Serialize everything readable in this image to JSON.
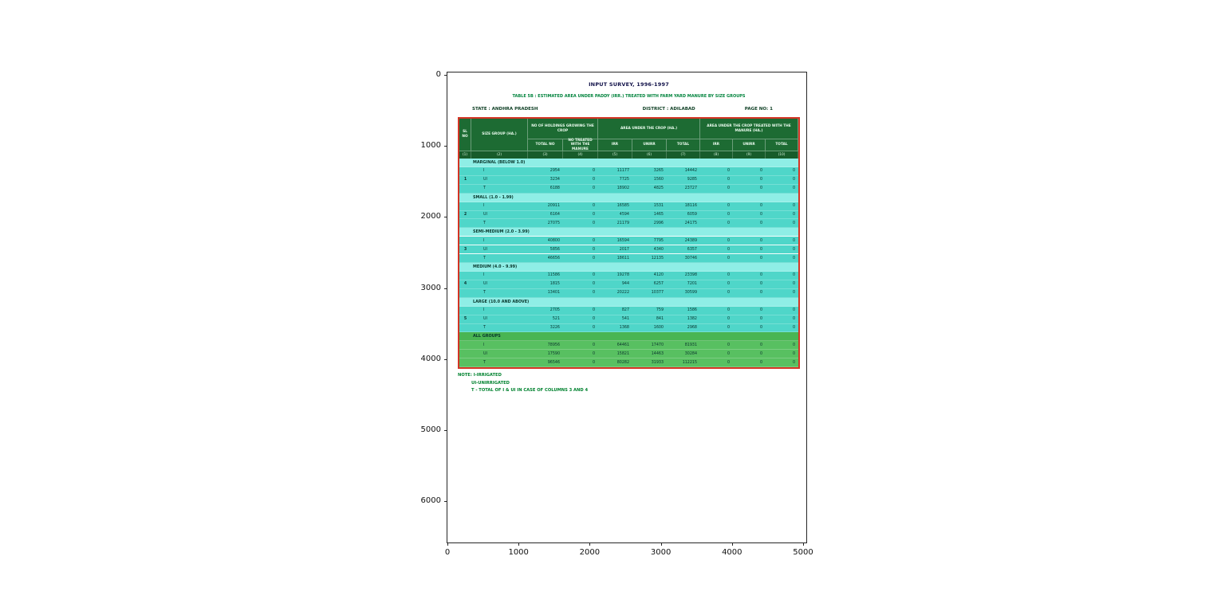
{
  "figure": {
    "x_ticks": [
      "0",
      "1000",
      "2000",
      "3000",
      "4000",
      "5000"
    ],
    "y_ticks": [
      "0",
      "1000",
      "2000",
      "3000",
      "4000",
      "5000",
      "6000"
    ]
  },
  "document": {
    "title": "INPUT SURVEY, 1996-1997",
    "subtitle": "TABLE 5B : ESTIMATED AREA UNDER PADDY (IRR.) TREATED WITH FARM YARD MANURE BY SIZE GROUPS",
    "state": "STATE : ANDHRA PRADESH",
    "district": "DISTRICT : ADILABAD",
    "page": "PAGE NO: 1",
    "notes": [
      "NOTE: I-IRRIGATED",
      "UI-UNIRRIGATED",
      "T - TOTAL OF I & UI IN CASE OF COLUMNS 3 AND 4"
    ],
    "colors": {
      "header_green": "#1d6b33",
      "row_teal": "#4fd6c9",
      "row_teal_light": "#8feee6",
      "all_groups_green": "#58c061",
      "border_red": "#d43425",
      "note_green": "#00822f"
    }
  },
  "table": {
    "header": {
      "sl": "SL NO",
      "size_group": "SIZE GROUP (HA.)",
      "holdings_group": "NO OF HOLDINGS GROWING THE CROP",
      "holdings_sub": [
        "TOTAL NO",
        "NO TREATED WITH THE MANURE"
      ],
      "area_group": "AREA UNDER THE CROP (HA.)",
      "area_sub": [
        "IRR",
        "UNIRR",
        "TOTAL"
      ],
      "treated_group": "AREA UNDER THE CROP TREATED WITH THE MANURE (HA.)",
      "treated_sub": [
        "IRR",
        "UNIRR",
        "TOTAL"
      ],
      "col_numbers": [
        "(1)",
        "(2)",
        "(3)",
        "(4)",
        "(5)",
        "(6)",
        "(7)",
        "(8)",
        "(9)",
        "(10)"
      ]
    },
    "groups": [
      {
        "sl": "1",
        "label": "MARGINAL (BELOW 1.0)",
        "rows": [
          {
            "type": "I",
            "values": [
              "2954",
              "0",
              "11177",
              "3265",
              "14442",
              "0",
              "0",
              "0"
            ]
          },
          {
            "type": "UI",
            "values": [
              "3234",
              "0",
              "7725",
              "1560",
              "9285",
              "0",
              "0",
              "0"
            ]
          },
          {
            "type": "T",
            "values": [
              "6188",
              "0",
              "18902",
              "4825",
              "23727",
              "0",
              "0",
              "0"
            ]
          }
        ]
      },
      {
        "sl": "2",
        "label": "SMALL (1.0 - 1.99)",
        "rows": [
          {
            "type": "I",
            "values": [
              "20911",
              "0",
              "16585",
              "1531",
              "18116",
              "0",
              "0",
              "0"
            ]
          },
          {
            "type": "UI",
            "values": [
              "6164",
              "0",
              "4594",
              "1465",
              "6059",
              "0",
              "0",
              "0"
            ]
          },
          {
            "type": "T",
            "values": [
              "27075",
              "0",
              "21179",
              "2996",
              "24175",
              "0",
              "0",
              "0"
            ]
          }
        ]
      },
      {
        "sl": "3",
        "label": "SEMI-MEDIUM (2.0 - 3.99)",
        "rows": [
          {
            "type": "I",
            "values": [
              "40800",
              "0",
              "16594",
              "7795",
              "24389",
              "0",
              "0",
              "0"
            ]
          },
          {
            "type": "UI",
            "values": [
              "5856",
              "0",
              "2017",
              "4340",
              "6357",
              "0",
              "0",
              "0"
            ]
          },
          {
            "type": "T",
            "values": [
              "46656",
              "0",
              "18611",
              "12135",
              "30746",
              "0",
              "0",
              "0"
            ]
          }
        ]
      },
      {
        "sl": "4",
        "label": "MEDIUM (4.0 - 9.99)",
        "rows": [
          {
            "type": "I",
            "values": [
              "11586",
              "0",
              "19278",
              "4120",
              "23398",
              "0",
              "0",
              "0"
            ]
          },
          {
            "type": "UI",
            "values": [
              "1815",
              "0",
              "944",
              "6257",
              "7201",
              "0",
              "0",
              "0"
            ]
          },
          {
            "type": "T",
            "values": [
              "13401",
              "0",
              "20222",
              "10377",
              "30599",
              "0",
              "0",
              "0"
            ]
          }
        ]
      },
      {
        "sl": "5",
        "label": "LARGE (10.0 AND ABOVE)",
        "rows": [
          {
            "type": "I",
            "values": [
              "2705",
              "0",
              "827",
              "759",
              "1586",
              "0",
              "0",
              "0"
            ]
          },
          {
            "type": "UI",
            "values": [
              "521",
              "0",
              "541",
              "841",
              "1382",
              "0",
              "0",
              "0"
            ]
          },
          {
            "type": "T",
            "values": [
              "3226",
              "0",
              "1368",
              "1600",
              "2968",
              "0",
              "0",
              "0"
            ]
          }
        ]
      },
      {
        "sl": "",
        "label": "ALL GROUPS",
        "rows": [
          {
            "type": "I",
            "values": [
              "78956",
              "0",
              "64461",
              "17470",
              "81931",
              "0",
              "0",
              "0"
            ]
          },
          {
            "type": "UI",
            "values": [
              "17590",
              "0",
              "15821",
              "14463",
              "30284",
              "0",
              "0",
              "0"
            ]
          },
          {
            "type": "T",
            "values": [
              "96546",
              "0",
              "80282",
              "31933",
              "112215",
              "0",
              "0",
              "0"
            ]
          }
        ]
      }
    ]
  },
  "chart_data": {
    "type": "table",
    "title": "INPUT SURVEY, 1996-1997 — TABLE 5B : ESTIMATED AREA UNDER PADDY (IRR.) TREATED WITH FARM YARD MANURE BY SIZE GROUPS",
    "state": "ANDHRA PRADESH",
    "district": "ADILABAD",
    "page": "1",
    "axes": {
      "x_range": [
        0,
        5000
      ],
      "y_range": [
        0,
        6000
      ],
      "note": "matplotlib-style image view of scanned table"
    },
    "columns": [
      "SIZE GROUP (HA.)",
      "TYPE",
      "TOTAL NO OF HOLDINGS",
      "NO TREATED WITH THE MANURE",
      "AREA IRR",
      "AREA UNIRR",
      "AREA TOTAL",
      "TREATED AREA IRR",
      "TREATED AREA UNIRR",
      "TREATED AREA TOTAL"
    ],
    "rows": [
      [
        "MARGINAL (BELOW 1.0)",
        "I",
        2954,
        0,
        11177,
        3265,
        14442,
        0,
        0,
        0
      ],
      [
        "MARGINAL (BELOW 1.0)",
        "UI",
        3234,
        0,
        7725,
        1560,
        9285,
        0,
        0,
        0
      ],
      [
        "MARGINAL (BELOW 1.0)",
        "T",
        6188,
        0,
        18902,
        4825,
        23727,
        0,
        0,
        0
      ],
      [
        "SMALL (1.0 - 1.99)",
        "I",
        20911,
        0,
        16585,
        1531,
        18116,
        0,
        0,
        0
      ],
      [
        "SMALL (1.0 - 1.99)",
        "UI",
        6164,
        0,
        4594,
        1465,
        6059,
        0,
        0,
        0
      ],
      [
        "SMALL (1.0 - 1.99)",
        "T",
        27075,
        0,
        21179,
        2996,
        24175,
        0,
        0,
        0
      ],
      [
        "SEMI-MEDIUM (2.0 - 3.99)",
        "I",
        40800,
        0,
        16594,
        7795,
        24389,
        0,
        0,
        0
      ],
      [
        "SEMI-MEDIUM (2.0 - 3.99)",
        "UI",
        5856,
        0,
        2017,
        4340,
        6357,
        0,
        0,
        0
      ],
      [
        "SEMI-MEDIUM (2.0 - 3.99)",
        "T",
        46656,
        0,
        18611,
        12135,
        30746,
        0,
        0,
        0
      ],
      [
        "MEDIUM (4.0 - 9.99)",
        "I",
        11586,
        0,
        19278,
        4120,
        23398,
        0,
        0,
        0
      ],
      [
        "MEDIUM (4.0 - 9.99)",
        "UI",
        1815,
        0,
        944,
        6257,
        7201,
        0,
        0,
        0
      ],
      [
        "MEDIUM (4.0 - 9.99)",
        "T",
        13401,
        0,
        20222,
        10377,
        30599,
        0,
        0,
        0
      ],
      [
        "LARGE (10.0 AND ABOVE)",
        "I",
        2705,
        0,
        827,
        759,
        1586,
        0,
        0,
        0
      ],
      [
        "LARGE (10.0 AND ABOVE)",
        "UI",
        521,
        0,
        541,
        841,
        1382,
        0,
        0,
        0
      ],
      [
        "LARGE (10.0 AND ABOVE)",
        "T",
        3226,
        0,
        1368,
        1600,
        2968,
        0,
        0,
        0
      ],
      [
        "ALL GROUPS",
        "I",
        78956,
        0,
        64461,
        17470,
        81931,
        0,
        0,
        0
      ],
      [
        "ALL GROUPS",
        "UI",
        17590,
        0,
        15821,
        14463,
        30284,
        0,
        0,
        0
      ],
      [
        "ALL GROUPS",
        "T",
        96546,
        0,
        80282,
        31933,
        112215,
        0,
        0,
        0
      ]
    ]
  }
}
